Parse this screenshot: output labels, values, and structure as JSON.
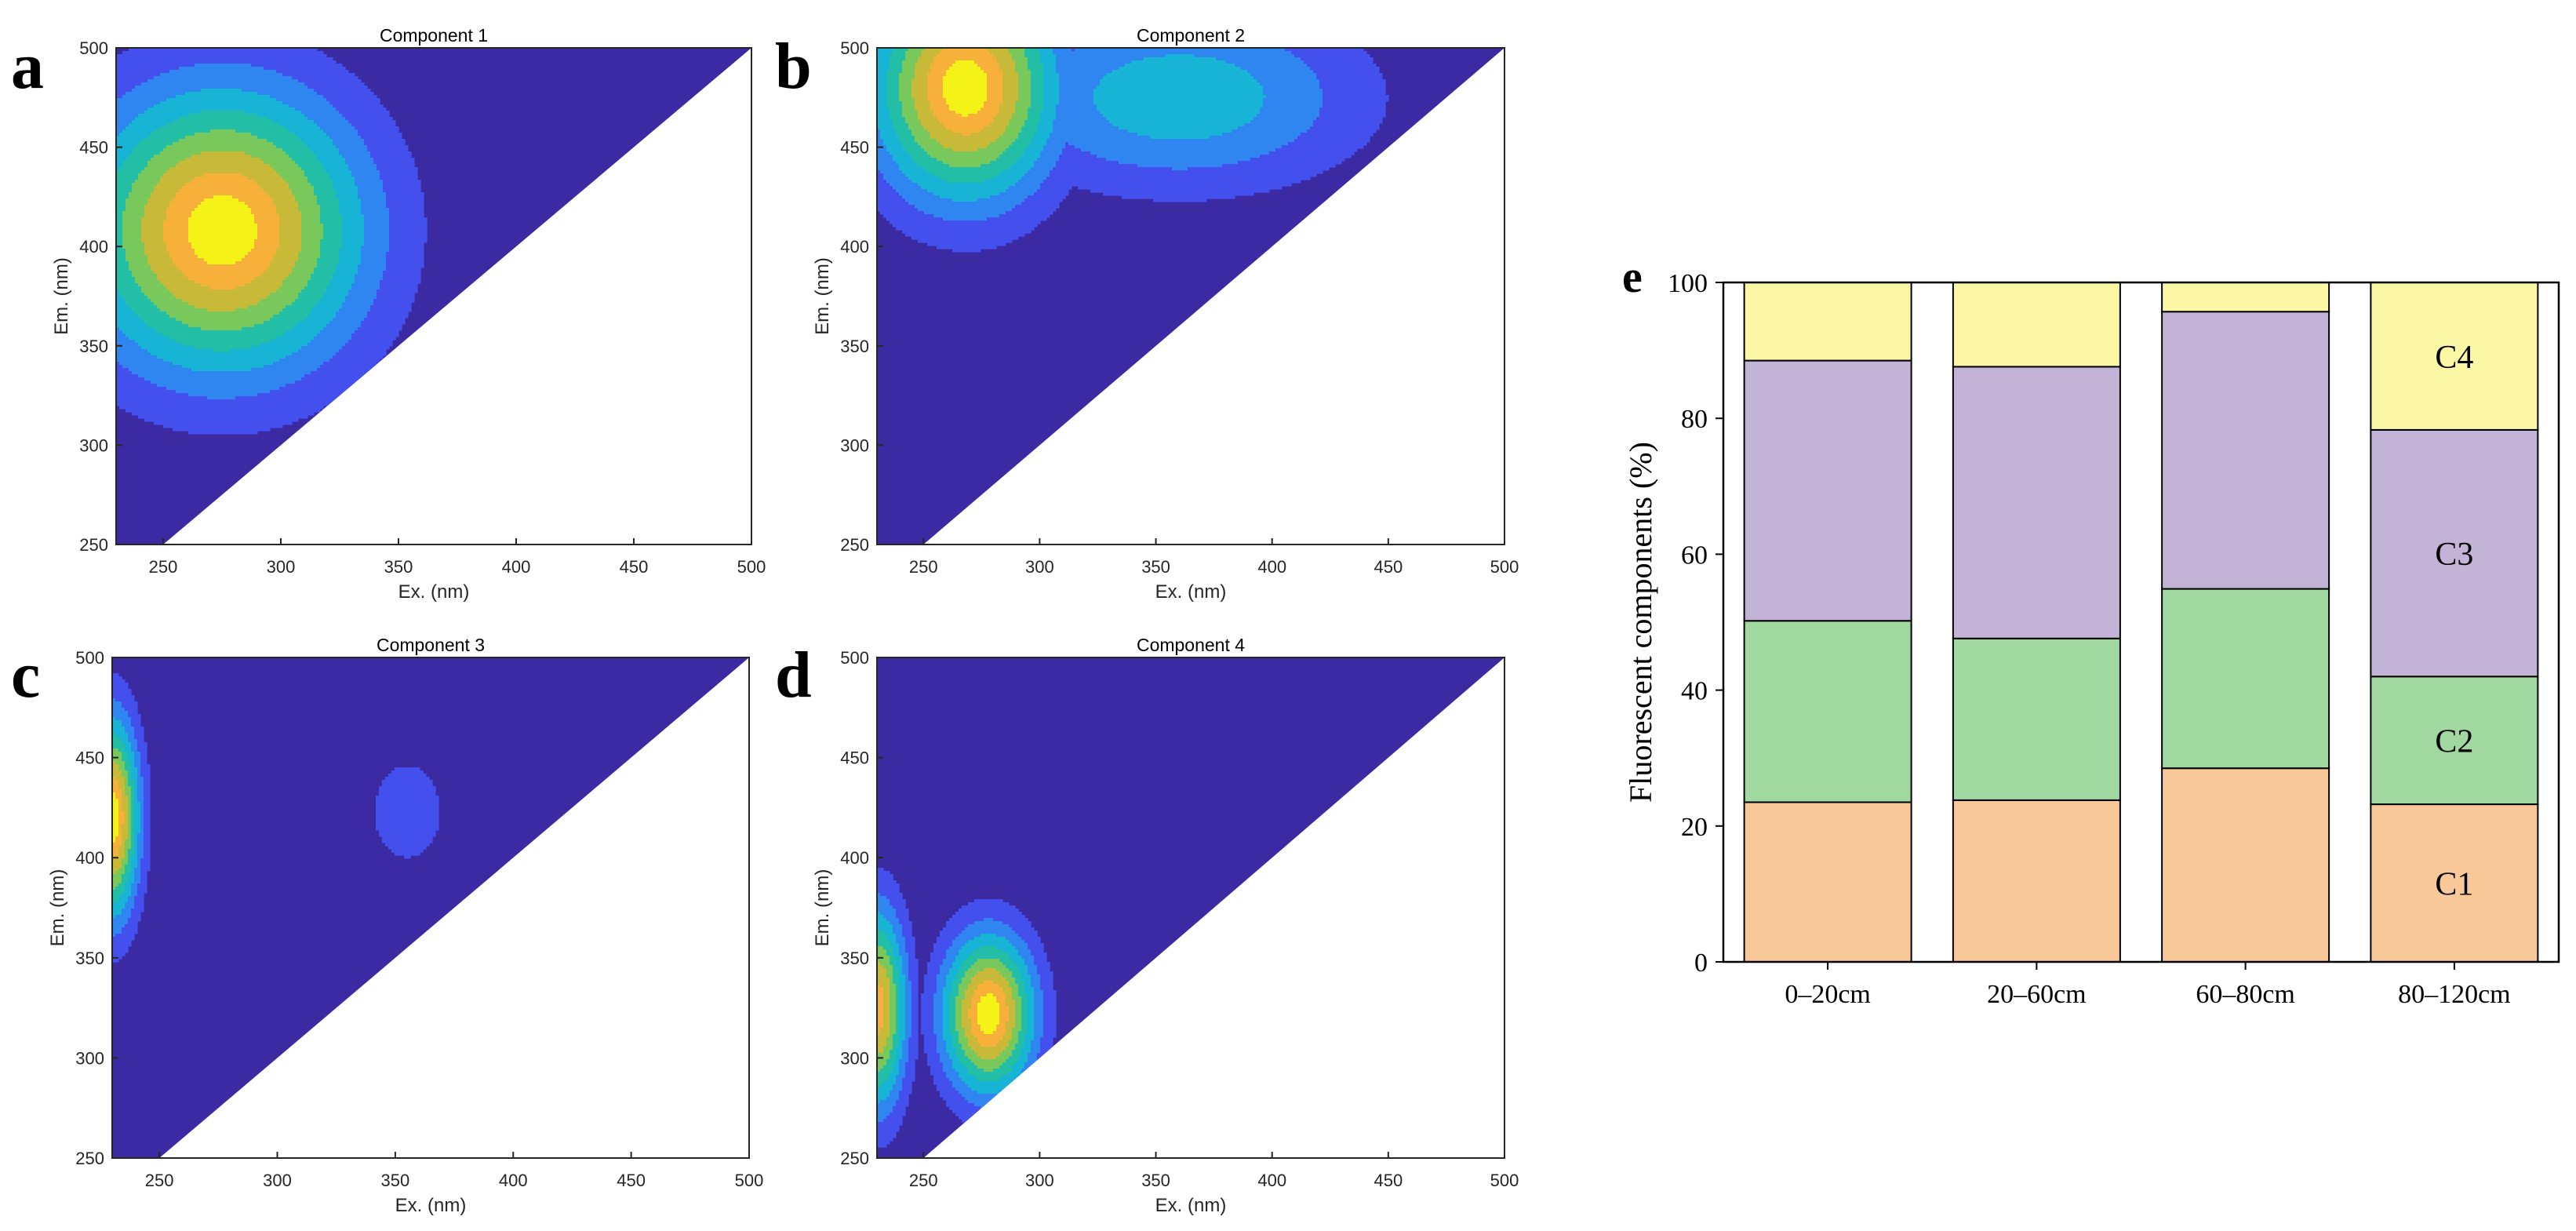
{
  "panels": [
    {
      "letter": "a",
      "title": "Component 1"
    },
    {
      "letter": "b",
      "title": "Component 2"
    },
    {
      "letter": "c",
      "title": "Component 3"
    },
    {
      "letter": "d",
      "title": "Component 4"
    }
  ],
  "panel_e_letter": "e",
  "colors": {
    "contour_levels": [
      "#3c2aa3",
      "#4450ee",
      "#2f86f0",
      "#17b4d6",
      "#22bea6",
      "#78c85c",
      "#c8b938",
      "#f7b03a",
      "#f5f218"
    ],
    "C1": "#f8c898",
    "C2": "#a0d8a0",
    "C3": "#c2b3d7",
    "C4": "#fbf7a4",
    "contour_line": "#2b2b2b"
  },
  "chart_data": [
    {
      "type": "heatmap",
      "title": "Component 1",
      "xlabel": "Ex. (nm)",
      "ylabel": "Em. (nm)",
      "xlim": [
        230,
        500
      ],
      "ylim": [
        250,
        500
      ],
      "xticks": [
        250,
        300,
        350,
        400,
        450,
        500
      ],
      "yticks": [
        250,
        300,
        350,
        400,
        450,
        500
      ],
      "peak": {
        "ex": 275,
        "em": 408
      },
      "sigma": {
        "ex": 42,
        "em": 50
      }
    },
    {
      "type": "heatmap",
      "title": "Component 2",
      "xlabel": "Ex. (nm)",
      "ylabel": "Em. (nm)",
      "xlim": [
        230,
        500
      ],
      "ylim": [
        250,
        500
      ],
      "xticks": [
        250,
        300,
        350,
        400,
        450,
        500
      ],
      "yticks": [
        250,
        300,
        350,
        400,
        450,
        500
      ],
      "peak": {
        "ex": 268,
        "em": 480
      },
      "sigma": {
        "ex": 28,
        "em": 40
      },
      "shoulder": {
        "ex": 360,
        "em": 475,
        "amplitude": 0.45
      }
    },
    {
      "type": "heatmap",
      "title": "Component 3",
      "xlabel": "Ex. (nm)",
      "ylabel": "Em. (nm)",
      "xlim": [
        230,
        500
      ],
      "ylim": [
        250,
        500
      ],
      "xticks": [
        250,
        300,
        350,
        400,
        450,
        500
      ],
      "yticks": [
        250,
        300,
        350,
        400,
        450,
        500
      ],
      "peak": {
        "ex": 230,
        "em": 420
      },
      "sigma": {
        "ex": 8,
        "em": 35
      },
      "secondary_peak": {
        "ex": 355,
        "em": 423,
        "amplitude": 0.2
      }
    },
    {
      "type": "heatmap",
      "title": "Component 4",
      "xlabel": "Ex. (nm)",
      "ylabel": "Em. (nm)",
      "xlim": [
        230,
        500
      ],
      "ylim": [
        250,
        500
      ],
      "xticks": [
        250,
        300,
        350,
        400,
        450,
        500
      ],
      "yticks": [
        250,
        300,
        350,
        400,
        450,
        500
      ],
      "peak": {
        "ex": 278,
        "em": 322
      },
      "sigma": {
        "ex": 14,
        "em": 28
      },
      "edge_peak": {
        "ex": 230,
        "em": 325,
        "amplitude": 0.9
      }
    },
    {
      "type": "bar",
      "stacked": true,
      "categories": [
        "0–20cm",
        "20–60cm",
        "60–80cm",
        "80–120cm"
      ],
      "series": [
        {
          "name": "C1",
          "values": [
            23.5,
            23.8,
            28.5,
            23.2
          ]
        },
        {
          "name": "C2",
          "values": [
            26.7,
            23.8,
            26.4,
            18.8
          ]
        },
        {
          "name": "C3",
          "values": [
            38.3,
            40.0,
            40.8,
            36.3
          ]
        },
        {
          "name": "C4",
          "values": [
            11.5,
            12.4,
            4.3,
            21.7
          ]
        }
      ],
      "series_labels_shown_on": "80–120cm",
      "ylabel": "Fluorescent components (%)",
      "xlabel": "",
      "ylim": [
        0,
        100
      ],
      "yticks": [
        0,
        20,
        40,
        60,
        80,
        100
      ]
    }
  ]
}
